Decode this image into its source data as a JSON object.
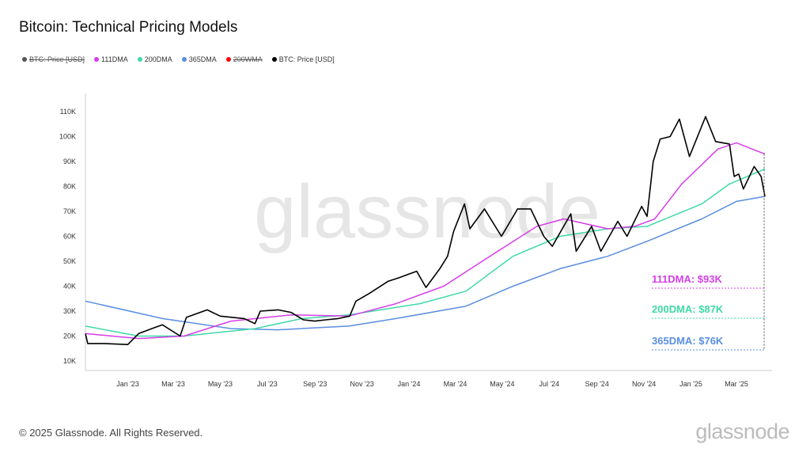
{
  "title": "Bitcoin: Technical Pricing Models",
  "legend": [
    {
      "label": "BTC: Price [USD]",
      "color": "#555555",
      "disabled": true
    },
    {
      "label": "111DMA",
      "color": "#d63ee8",
      "disabled": false
    },
    {
      "label": "200DMA",
      "color": "#3ed9a6",
      "disabled": false
    },
    {
      "label": "365DMA",
      "color": "#5a8ee0",
      "disabled": false
    },
    {
      "label": "200WMA",
      "color": "#ff0000",
      "disabled": true
    },
    {
      "label": "BTC: Price [USD]",
      "color": "#000000",
      "disabled": false
    }
  ],
  "footer": "© 2025 Glassnode. All Rights Reserved.",
  "logo": "glassnode",
  "watermark": "glassnode",
  "chart_data": {
    "type": "line",
    "ylim": [
      10000,
      110000
    ],
    "yticks": [
      {
        "v": 10000,
        "label": "10K"
      },
      {
        "v": 20000,
        "label": "20K"
      },
      {
        "v": 30000,
        "label": "30K"
      },
      {
        "v": 40000,
        "label": "40K"
      },
      {
        "v": 50000,
        "label": "50K"
      },
      {
        "v": 60000,
        "label": "60K"
      },
      {
        "v": 70000,
        "label": "70K"
      },
      {
        "v": 80000,
        "label": "80K"
      },
      {
        "v": 90000,
        "label": "90K"
      },
      {
        "v": 100000,
        "label": "100K"
      },
      {
        "v": 110000,
        "label": "110K"
      }
    ],
    "xlim": [
      "2022-11-07",
      "2025-04-08"
    ],
    "xticks": [
      {
        "d": "2023-01-01",
        "label": "Jan '23"
      },
      {
        "d": "2023-03-01",
        "label": "Mar '23"
      },
      {
        "d": "2023-05-01",
        "label": "May '23"
      },
      {
        "d": "2023-07-01",
        "label": "Jul '23"
      },
      {
        "d": "2023-09-01",
        "label": "Sep '23"
      },
      {
        "d": "2023-11-01",
        "label": "Nov '23"
      },
      {
        "d": "2024-01-01",
        "label": "Jan '24"
      },
      {
        "d": "2024-03-01",
        "label": "Mar '24"
      },
      {
        "d": "2024-05-01",
        "label": "May '24"
      },
      {
        "d": "2024-07-01",
        "label": "Jul '24"
      },
      {
        "d": "2024-09-01",
        "label": "Sep '24"
      },
      {
        "d": "2024-11-01",
        "label": "Nov '24"
      },
      {
        "d": "2025-01-01",
        "label": "Jan '25"
      },
      {
        "d": "2025-03-01",
        "label": "Mar '25"
      }
    ],
    "series": [
      {
        "name": "BTC: Price [USD]",
        "color": "#000000",
        "points": [
          [
            "2022-11-07",
            21000
          ],
          [
            "2022-11-10",
            17000
          ],
          [
            "2022-12-01",
            17000
          ],
          [
            "2023-01-01",
            16600
          ],
          [
            "2023-01-15",
            21000
          ],
          [
            "2023-02-01",
            23000
          ],
          [
            "2023-02-15",
            24500
          ],
          [
            "2023-03-10",
            20000
          ],
          [
            "2023-03-18",
            27500
          ],
          [
            "2023-04-14",
            30500
          ],
          [
            "2023-05-01",
            28000
          ],
          [
            "2023-06-01",
            27000
          ],
          [
            "2023-06-15",
            25000
          ],
          [
            "2023-06-22",
            30000
          ],
          [
            "2023-07-15",
            30500
          ],
          [
            "2023-08-01",
            29500
          ],
          [
            "2023-08-17",
            26500
          ],
          [
            "2023-09-01",
            26000
          ],
          [
            "2023-09-15",
            26500
          ],
          [
            "2023-10-01",
            27000
          ],
          [
            "2023-10-16",
            28000
          ],
          [
            "2023-10-24",
            34000
          ],
          [
            "2023-11-10",
            37000
          ],
          [
            "2023-12-05",
            42000
          ],
          [
            "2023-12-20",
            43500
          ],
          [
            "2024-01-11",
            46000
          ],
          [
            "2024-01-23",
            39500
          ],
          [
            "2024-02-10",
            47000
          ],
          [
            "2024-02-20",
            52000
          ],
          [
            "2024-02-28",
            62000
          ],
          [
            "2024-03-13",
            73000
          ],
          [
            "2024-03-20",
            63000
          ],
          [
            "2024-04-08",
            71000
          ],
          [
            "2024-04-30",
            60000
          ],
          [
            "2024-05-21",
            71000
          ],
          [
            "2024-06-07",
            71000
          ],
          [
            "2024-06-24",
            60000
          ],
          [
            "2024-07-05",
            56000
          ],
          [
            "2024-07-29",
            69000
          ],
          [
            "2024-08-05",
            54000
          ],
          [
            "2024-08-25",
            64000
          ],
          [
            "2024-09-06",
            54000
          ],
          [
            "2024-09-28",
            66000
          ],
          [
            "2024-10-10",
            60000
          ],
          [
            "2024-10-29",
            72000
          ],
          [
            "2024-11-05",
            68000
          ],
          [
            "2024-11-13",
            90000
          ],
          [
            "2024-11-22",
            99000
          ],
          [
            "2024-12-05",
            100000
          ],
          [
            "2024-12-17",
            107000
          ],
          [
            "2024-12-30",
            92000
          ],
          [
            "2025-01-20",
            108000
          ],
          [
            "2025-02-02",
            98000
          ],
          [
            "2025-02-20",
            97000
          ],
          [
            "2025-02-26",
            84000
          ],
          [
            "2025-03-04",
            85000
          ],
          [
            "2025-03-10",
            79000
          ],
          [
            "2025-03-24",
            88000
          ],
          [
            "2025-04-02",
            84000
          ],
          [
            "2025-04-07",
            76000
          ]
        ]
      },
      {
        "name": "111DMA",
        "color": "#d63ee8",
        "points": [
          [
            "2022-11-07",
            21000
          ],
          [
            "2023-01-15",
            19000
          ],
          [
            "2023-03-15",
            20000
          ],
          [
            "2023-05-15",
            26000
          ],
          [
            "2023-08-01",
            28500
          ],
          [
            "2023-10-15",
            28000
          ],
          [
            "2023-12-15",
            33000
          ],
          [
            "2024-02-15",
            40000
          ],
          [
            "2024-04-15",
            52000
          ],
          [
            "2024-06-15",
            64000
          ],
          [
            "2024-07-20",
            67000
          ],
          [
            "2024-09-15",
            63000
          ],
          [
            "2024-10-20",
            64000
          ],
          [
            "2024-11-15",
            67000
          ],
          [
            "2024-12-20",
            81000
          ],
          [
            "2025-02-05",
            95000
          ],
          [
            "2025-03-01",
            97500
          ],
          [
            "2025-04-07",
            93000
          ]
        ]
      },
      {
        "name": "200DMA",
        "color": "#3ed9a6",
        "points": [
          [
            "2022-11-07",
            24000
          ],
          [
            "2023-01-15",
            20000
          ],
          [
            "2023-03-15",
            20000
          ],
          [
            "2023-06-15",
            23000
          ],
          [
            "2023-08-15",
            27000
          ],
          [
            "2023-10-15",
            28500
          ],
          [
            "2024-01-15",
            33000
          ],
          [
            "2024-03-15",
            38000
          ],
          [
            "2024-05-15",
            52000
          ],
          [
            "2024-07-15",
            60000
          ],
          [
            "2024-09-15",
            63000
          ],
          [
            "2024-11-05",
            64000
          ],
          [
            "2025-01-15",
            73000
          ],
          [
            "2025-02-20",
            81000
          ],
          [
            "2025-04-07",
            87000
          ]
        ]
      },
      {
        "name": "365DMA",
        "color": "#5a8ee0",
        "points": [
          [
            "2022-11-07",
            34000
          ],
          [
            "2023-02-15",
            27000
          ],
          [
            "2023-05-15",
            23000
          ],
          [
            "2023-07-15",
            22500
          ],
          [
            "2023-10-15",
            24000
          ],
          [
            "2023-12-15",
            27000
          ],
          [
            "2024-03-15",
            32000
          ],
          [
            "2024-05-15",
            40000
          ],
          [
            "2024-07-15",
            47000
          ],
          [
            "2024-09-15",
            52000
          ],
          [
            "2024-11-05",
            58000
          ],
          [
            "2025-01-15",
            67000
          ],
          [
            "2025-03-01",
            74000
          ],
          [
            "2025-04-07",
            76000
          ]
        ]
      }
    ],
    "annotations": [
      {
        "label": "111DMA: $93K",
        "color": "#d63ee8"
      },
      {
        "label": "200DMA: $87K",
        "color": "#3ed9a6"
      },
      {
        "label": "365DMA: $76K",
        "color": "#5a8ee0"
      }
    ]
  }
}
